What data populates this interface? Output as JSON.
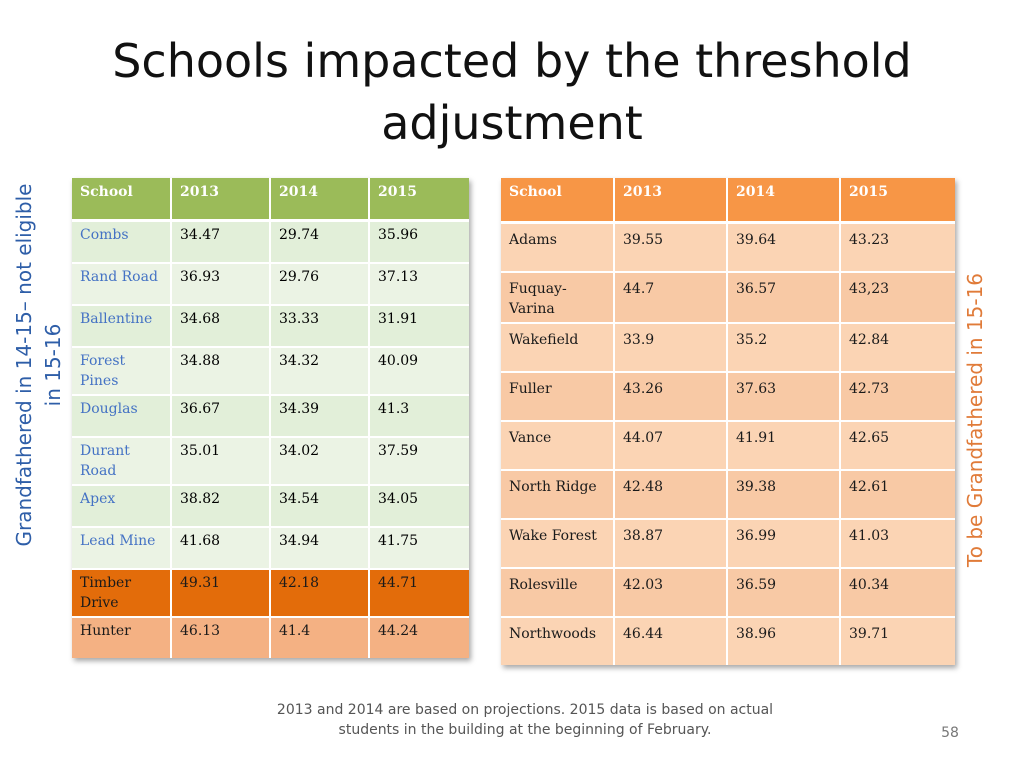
{
  "slide": {
    "title": "Schools impacted by the threshold adjustment",
    "left_label": "Grandfathered in 14-15– not eligible in 15-16",
    "right_label": "To be Grandfathered in 15-16",
    "footnote": "2013 and 2014 are based on projections.  2015 data is based on actual students in the building at the beginning of February.",
    "page_number": "58"
  },
  "table_left": {
    "headers": [
      "School",
      "2013",
      "2014",
      "2015"
    ],
    "rows": [
      [
        "Combs",
        "34.47",
        "29.74",
        "35.96"
      ],
      [
        "Rand Road",
        "36.93",
        "29.76",
        "37.13"
      ],
      [
        "Ballentine",
        "34.68",
        "33.33",
        "31.91"
      ],
      [
        "Forest Pines",
        "34.88",
        "34.32",
        "40.09"
      ],
      [
        "Douglas",
        "36.67",
        "34.39",
        "41.3"
      ],
      [
        "Durant Road",
        "35.01",
        "34.02",
        "37.59"
      ],
      [
        "Apex",
        "38.82",
        "34.54",
        "34.05"
      ],
      [
        "Lead Mine",
        "41.68",
        "34.94",
        "41.75"
      ],
      [
        "Timber Drive",
        "49.31",
        "42.18",
        "44.71"
      ],
      [
        "Hunter",
        "46.13",
        "41.4",
        "44.24"
      ]
    ]
  },
  "table_right": {
    "headers": [
      "School",
      "2013",
      "2014",
      "2015"
    ],
    "rows": [
      [
        "Adams",
        "39.55",
        "39.64",
        "43.23"
      ],
      [
        "Fuquay-Varina",
        "44.7",
        "36.57",
        "43,23"
      ],
      [
        "Wakefield",
        "33.9",
        "35.2",
        "42.84"
      ],
      [
        "Fuller",
        "43.26",
        "37.63",
        "42.73"
      ],
      [
        "Vance",
        "44.07",
        "41.91",
        "42.65"
      ],
      [
        "North Ridge",
        "42.48",
        "39.38",
        "42.61"
      ],
      [
        "Wake Forest",
        "38.87",
        "36.99",
        "41.03"
      ],
      [
        "Rolesville",
        "42.03",
        "36.59",
        "40.34"
      ],
      [
        "Northwoods",
        "46.44",
        "38.96",
        "39.71"
      ]
    ]
  },
  "colors": {
    "left_header": "#9bbb59",
    "right_header": "#f79646",
    "highlight_dark": "#e36c0a",
    "highlight_light": "#f4b183",
    "left_label": "#2e5ea8",
    "right_label": "#e07b39"
  }
}
